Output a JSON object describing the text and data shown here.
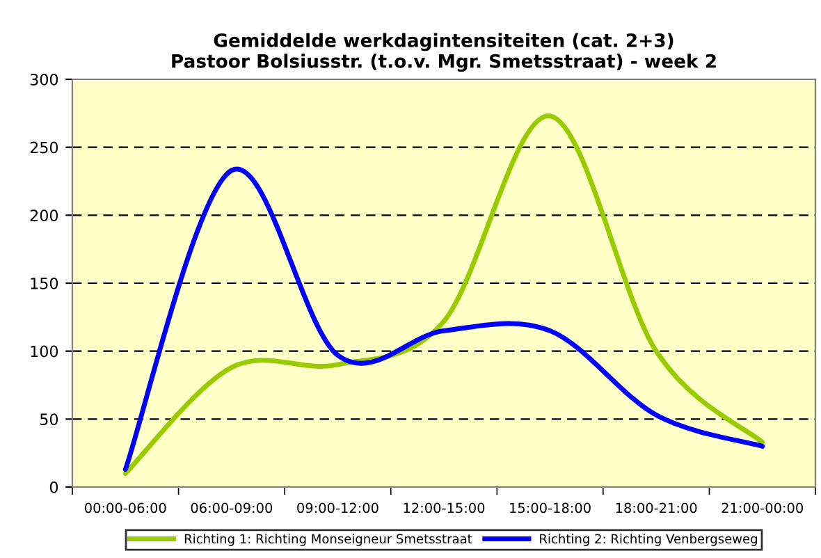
{
  "chart_data": {
    "type": "line",
    "title": "Gemiddelde werkdagintensiteiten (cat. 2+3)\nPastoor Bolsiusstr. (t.o.v. Mgr. Smetsstraat) - week 2",
    "categories": [
      "00:00-06:00",
      "06:00-09:00",
      "09:00-12:00",
      "12:00-15:00",
      "15:00-18:00",
      "18:00-21:00",
      "21:00-00:00"
    ],
    "series": [
      {
        "name": "Richting 1: Richting Monseigneur Smetsstraat",
        "color": "#99cc00",
        "values": [
          10,
          88,
          90,
          122,
          273,
          100,
          33
        ]
      },
      {
        "name": "Richting 2: Richting Venbergseweg",
        "color": "#0000ff",
        "values": [
          13,
          233,
          97,
          115,
          115,
          53,
          30
        ]
      }
    ],
    "ylim": [
      0,
      300
    ],
    "yticks": [
      0,
      50,
      100,
      150,
      200,
      250,
      300
    ],
    "grid": "y",
    "legend": "bottom",
    "line_style": "solid",
    "marker": "none"
  }
}
